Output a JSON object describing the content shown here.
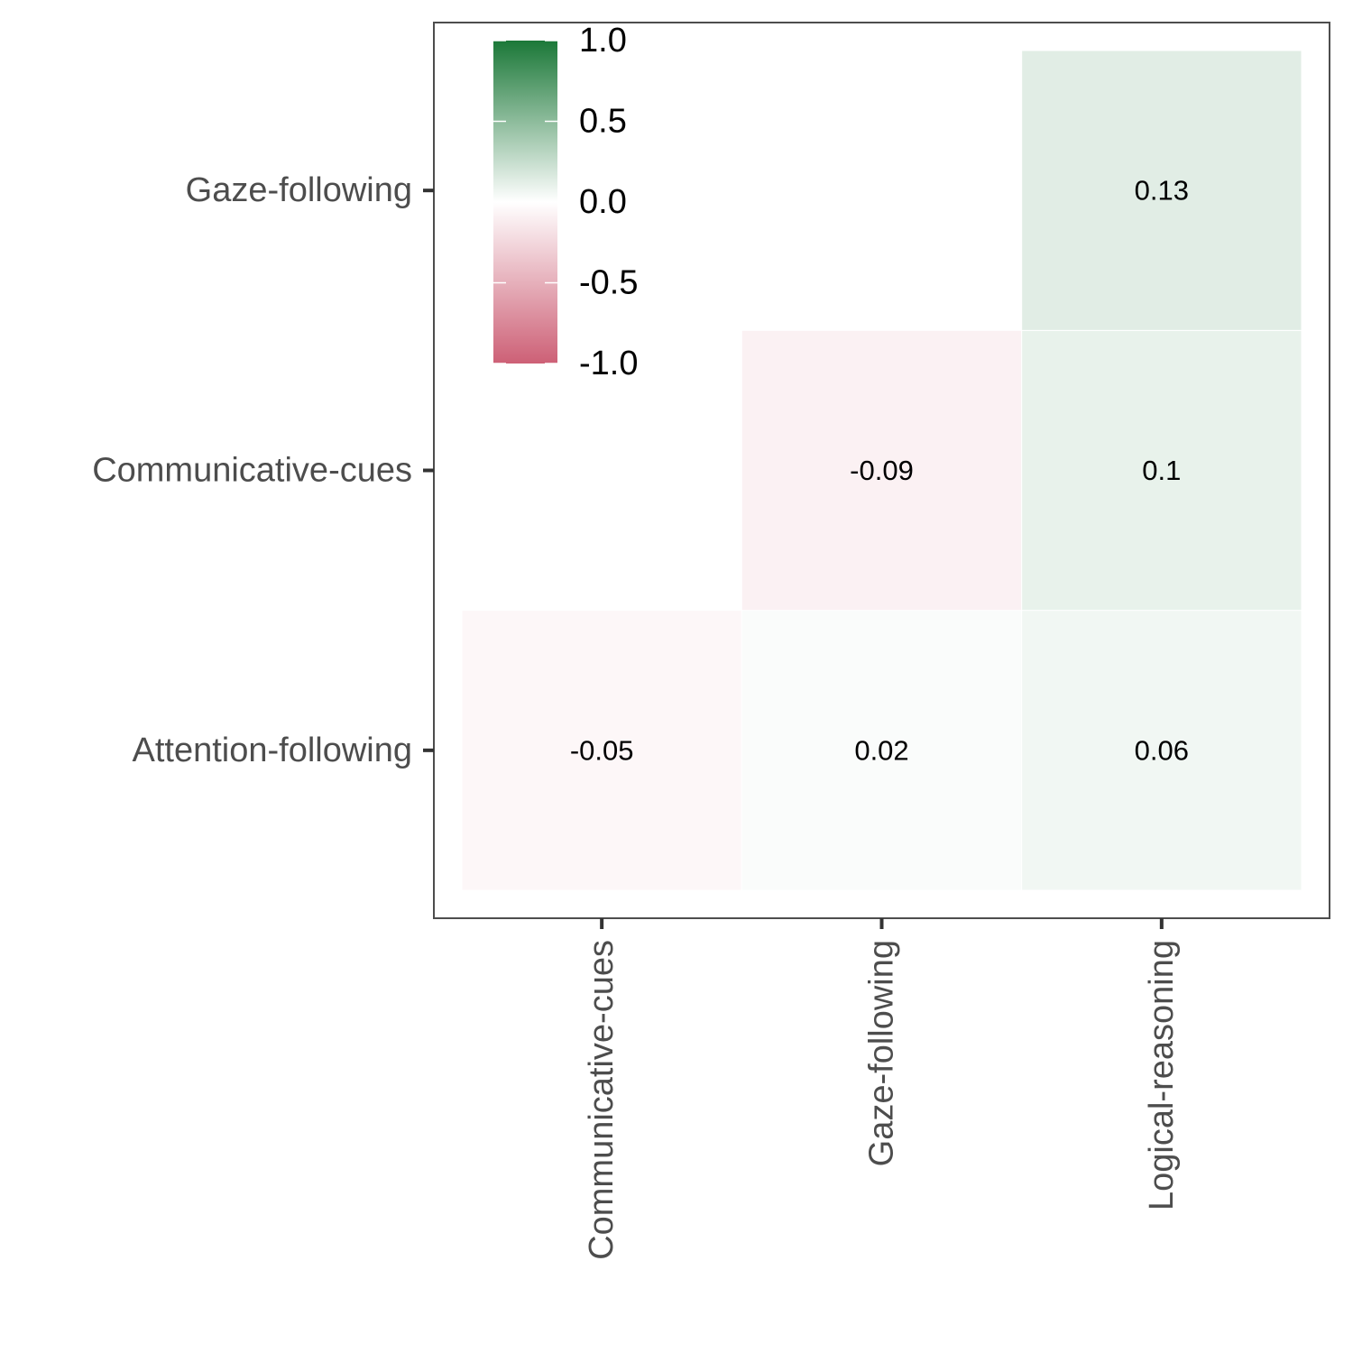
{
  "chart_data": {
    "type": "heatmap",
    "title": "",
    "xlabel": "",
    "ylabel": "",
    "x_categories": [
      "Communicative-cues",
      "Gaze-following",
      "Logical-reasoning"
    ],
    "y_categories": [
      "Attention-following",
      "Communicative-cues",
      "Gaze-following"
    ],
    "cells": [
      {
        "x": "Communicative-cues",
        "y": "Attention-following",
        "value": -0.05,
        "label": "-0.05"
      },
      {
        "x": "Gaze-following",
        "y": "Attention-following",
        "value": 0.02,
        "label": "0.02"
      },
      {
        "x": "Logical-reasoning",
        "y": "Attention-following",
        "value": 0.06,
        "label": "0.06"
      },
      {
        "x": "Gaze-following",
        "y": "Communicative-cues",
        "value": -0.09,
        "label": "-0.09"
      },
      {
        "x": "Logical-reasoning",
        "y": "Communicative-cues",
        "value": 0.1,
        "label": "0.1"
      },
      {
        "x": "Logical-reasoning",
        "y": "Gaze-following",
        "value": 0.13,
        "label": "0.13"
      }
    ],
    "color_scale": {
      "min": -1.0,
      "mid": 0.0,
      "max": 1.0,
      "low_color": "#cd6076",
      "mid_color": "#ffffff",
      "high_color": "#1b7838"
    },
    "legend": {
      "position": "top-left",
      "ticks": [
        "1.0",
        "0.5",
        "0.0",
        "-0.5",
        "-1.0"
      ]
    },
    "grid": false
  }
}
